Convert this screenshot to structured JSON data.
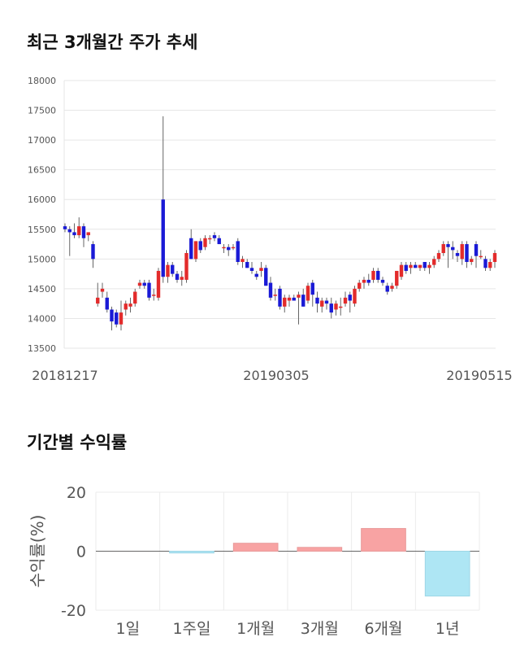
{
  "sections": {
    "price_title": "최근 3개월간 주가 추세",
    "return_title": "기간별 수익률"
  },
  "colors": {
    "up": "#e32b2b",
    "down": "#1a1ad6",
    "pos_bar": "#f8a3a3",
    "neg_bar": "#aee6f4",
    "grid": "#e6e6e6"
  },
  "chart_data": [
    {
      "type": "candlestick",
      "title": "최근 3개월간 주가 추세",
      "ylim": [
        13500,
        18000
      ],
      "yticks": [
        13500,
        14000,
        14500,
        15000,
        15500,
        16000,
        16500,
        17000,
        17500,
        18000
      ],
      "xtick_labels": [
        "20181217",
        "20190305",
        "20190515"
      ],
      "grid": true,
      "candles": [
        [
          15550,
          15600,
          15450,
          15500
        ],
        [
          15500,
          15550,
          15050,
          15450
        ],
        [
          15450,
          15600,
          15350,
          15400
        ],
        [
          15400,
          15700,
          15350,
          15550
        ],
        [
          15550,
          15600,
          15200,
          15350
        ],
        [
          15400,
          15450,
          15300,
          15450
        ],
        [
          15250,
          15300,
          14850,
          15000
        ],
        [
          14250,
          14600,
          14200,
          14350
        ],
        [
          14450,
          14600,
          14350,
          14500
        ],
        [
          14350,
          14450,
          14100,
          14150
        ],
        [
          14150,
          14200,
          13800,
          13950
        ],
        [
          14100,
          14150,
          13850,
          13900
        ],
        [
          13900,
          14300,
          13800,
          14100
        ],
        [
          14150,
          14300,
          14050,
          14250
        ],
        [
          14200,
          14350,
          14100,
          14250
        ],
        [
          14250,
          14500,
          14200,
          14450
        ],
        [
          14550,
          14650,
          14500,
          14600
        ],
        [
          14600,
          14650,
          14500,
          14550
        ],
        [
          14600,
          14650,
          14300,
          14350
        ],
        [
          14400,
          14500,
          14300,
          14400
        ],
        [
          14350,
          14850,
          14300,
          14800
        ],
        [
          16000,
          17400,
          14600,
          14700
        ],
        [
          14700,
          14950,
          14600,
          14900
        ],
        [
          14900,
          14950,
          14700,
          14750
        ],
        [
          14750,
          14800,
          14600,
          14650
        ],
        [
          14650,
          14800,
          14550,
          14700
        ],
        [
          14650,
          15150,
          14600,
          15100
        ],
        [
          15350,
          15500,
          15000,
          15000
        ],
        [
          15000,
          15300,
          14950,
          15300
        ],
        [
          15300,
          15350,
          15100,
          15150
        ],
        [
          15200,
          15400,
          15150,
          15350
        ],
        [
          15350,
          15400,
          15250,
          15350
        ],
        [
          15400,
          15450,
          15300,
          15350
        ],
        [
          15350,
          15400,
          15250,
          15250
        ],
        [
          15200,
          15250,
          15100,
          15200
        ],
        [
          15200,
          15250,
          15050,
          15150
        ],
        [
          15200,
          15250,
          15150,
          15200
        ],
        [
          15300,
          15350,
          14900,
          14950
        ],
        [
          14950,
          15050,
          14850,
          15000
        ],
        [
          14950,
          15000,
          14850,
          14850
        ],
        [
          14850,
          14950,
          14750,
          14800
        ],
        [
          14750,
          14800,
          14650,
          14700
        ],
        [
          14800,
          14950,
          14700,
          14850
        ],
        [
          14850,
          14900,
          14550,
          14550
        ],
        [
          14600,
          14700,
          14300,
          14350
        ],
        [
          14400,
          14500,
          14300,
          14400
        ],
        [
          14500,
          14550,
          14150,
          14200
        ],
        [
          14200,
          14400,
          14100,
          14350
        ],
        [
          14300,
          14400,
          14200,
          14350
        ],
        [
          14350,
          14400,
          14300,
          14300
        ],
        [
          14350,
          14450,
          13900,
          14400
        ],
        [
          14400,
          14500,
          14200,
          14200
        ],
        [
          14300,
          14600,
          14250,
          14550
        ],
        [
          14600,
          14650,
          14200,
          14400
        ],
        [
          14350,
          14450,
          14100,
          14250
        ],
        [
          14200,
          14350,
          14100,
          14300
        ],
        [
          14300,
          14350,
          14150,
          14250
        ],
        [
          14250,
          14350,
          14000,
          14100
        ],
        [
          14150,
          14300,
          14050,
          14250
        ],
        [
          14200,
          14350,
          14050,
          14200
        ],
        [
          14250,
          14450,
          14200,
          14350
        ],
        [
          14400,
          14450,
          14100,
          14300
        ],
        [
          14250,
          14550,
          14200,
          14500
        ],
        [
          14500,
          14650,
          14450,
          14600
        ],
        [
          14600,
          14700,
          14500,
          14650
        ],
        [
          14650,
          14750,
          14550,
          14600
        ],
        [
          14650,
          14850,
          14600,
          14800
        ],
        [
          14800,
          14850,
          14600,
          14650
        ],
        [
          14650,
          14700,
          14550,
          14600
        ],
        [
          14550,
          14600,
          14400,
          14450
        ],
        [
          14500,
          14600,
          14450,
          14550
        ],
        [
          14550,
          14800,
          14500,
          14800
        ],
        [
          14700,
          14950,
          14650,
          14900
        ],
        [
          14900,
          14950,
          14750,
          14800
        ],
        [
          14850,
          14950,
          14750,
          14900
        ],
        [
          14900,
          14950,
          14850,
          14850
        ],
        [
          14850,
          14900,
          14800,
          14900
        ],
        [
          14950,
          14950,
          14800,
          14850
        ],
        [
          14850,
          14950,
          14750,
          14900
        ],
        [
          14900,
          15050,
          14850,
          15000
        ],
        [
          15000,
          15150,
          14950,
          15100
        ],
        [
          15100,
          15300,
          15050,
          15250
        ],
        [
          15250,
          15300,
          14850,
          15200
        ],
        [
          15200,
          15300,
          15000,
          15150
        ],
        [
          15100,
          15150,
          14950,
          15050
        ],
        [
          15000,
          15300,
          14900,
          15250
        ],
        [
          15250,
          15300,
          14850,
          14950
        ],
        [
          14950,
          15050,
          14900,
          15000
        ],
        [
          15250,
          15300,
          14850,
          15050
        ],
        [
          15050,
          15150,
          15000,
          15050
        ],
        [
          15000,
          15050,
          14800,
          14850
        ],
        [
          14850,
          15000,
          14800,
          14950
        ],
        [
          14950,
          15150,
          14850,
          15100
        ]
      ]
    },
    {
      "type": "bar",
      "title": "기간별 수익률",
      "ylabel": "수익률(%)",
      "ylim": [
        -20,
        20
      ],
      "yticks": [
        -20,
        0,
        20
      ],
      "categories": [
        "1일",
        "1주일",
        "1개월",
        "3개월",
        "6개월",
        "1년"
      ],
      "values": [
        0,
        -0.6,
        2.7,
        1.3,
        7.7,
        -15.2
      ]
    }
  ]
}
